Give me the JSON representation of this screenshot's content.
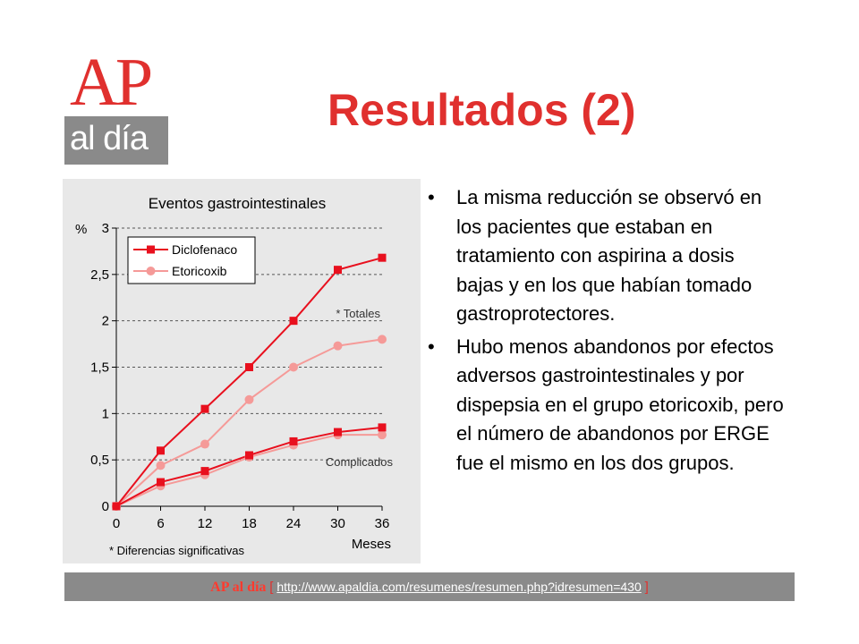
{
  "slide": {
    "title": "Resultados (2)",
    "logo": {
      "top": "AP",
      "bottom": "al día"
    }
  },
  "bullets": [
    "La misma reducción se observó en los pacientes que estaban en tratamiento con aspirina a dosis bajas y en los que habían tomado gastroprotectores.",
    "Hubo menos abandonos por efectos adversos gastrointestinales y por dispepsia en el grupo etoricoxib, pero el número de abandonos por ERGE fue el mismo en los dos grupos."
  ],
  "footer": {
    "brand": "AP al día",
    "bracket_open": "[",
    "url": "http://www.apaldia.com/resumenes/resumen.php?idresumen=430",
    "bracket_close": "]"
  },
  "chart_data": {
    "type": "line",
    "title": "Eventos gastrointestinales",
    "ylabel": "%",
    "xlabel": "Meses",
    "x": [
      0,
      6,
      12,
      18,
      24,
      30,
      36
    ],
    "xticks": [
      "0",
      "6",
      "12",
      "18",
      "24",
      "30",
      "36"
    ],
    "yticks": [
      "0",
      "0,5",
      "1",
      "1,5",
      "2",
      "2,5",
      "3"
    ],
    "ylim": [
      0,
      3
    ],
    "xlim": [
      0,
      36
    ],
    "grid": "horizontal dashed",
    "legend": "top-left",
    "series": [
      {
        "name": "Diclofenaco",
        "group": "Totales",
        "color": "#e8101e",
        "marker": "square",
        "values": [
          0,
          0.6,
          1.05,
          1.5,
          2.0,
          2.55,
          2.68
        ]
      },
      {
        "name": "Etoricoxib",
        "group": "Totales",
        "color": "#f59a98",
        "marker": "circle",
        "values": [
          0,
          0.44,
          0.67,
          1.15,
          1.5,
          1.73,
          1.8
        ]
      },
      {
        "name": "Diclofenaco",
        "group": "Complicados",
        "color": "#e8101e",
        "marker": "square",
        "values": [
          0,
          0.26,
          0.38,
          0.55,
          0.7,
          0.8,
          0.85
        ]
      },
      {
        "name": "Etoricoxib",
        "group": "Complicados",
        "color": "#f59a98",
        "marker": "circle",
        "values": [
          0,
          0.22,
          0.34,
          0.53,
          0.66,
          0.77,
          0.77
        ]
      }
    ],
    "annotations": [
      "* Totales",
      "Complicados"
    ],
    "footnote": "*  Diferencias significativas"
  }
}
